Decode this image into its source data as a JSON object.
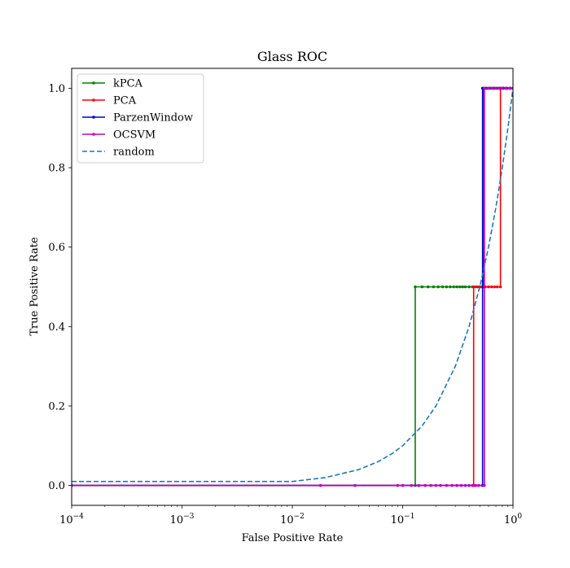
{
  "chart_data": {
    "type": "line",
    "title": "Glass ROC",
    "xlabel": "False Positive Rate",
    "ylabel": "True Positive Rate",
    "xscale": "log",
    "xlim": [
      0.0001,
      1
    ],
    "ylim": [
      -0.05,
      1.05
    ],
    "grid": false,
    "legend_position": "top-left",
    "x_ticks": [
      0.0001,
      0.001,
      0.01,
      0.1,
      1
    ],
    "x_tick_labels": [
      {
        "base": "10",
        "exp": "−4"
      },
      {
        "base": "10",
        "exp": "−3"
      },
      {
        "base": "10",
        "exp": "−2"
      },
      {
        "base": "10",
        "exp": "−1"
      },
      {
        "base": "10",
        "exp": "0"
      }
    ],
    "y_ticks": [
      0.0,
      0.2,
      0.4,
      0.6,
      0.8,
      1.0
    ],
    "y_tick_labels": [
      "0.0",
      "0.2",
      "0.4",
      "0.6",
      "0.8",
      "1.0"
    ],
    "series": [
      {
        "name": "kPCA",
        "color": "#008000",
        "style": "solid",
        "marker": true,
        "x": [
          0.0001,
          0.13,
          0.13,
          0.15,
          0.17,
          0.19,
          0.21,
          0.23,
          0.25,
          0.27,
          0.29,
          0.31,
          0.33,
          0.35,
          0.37,
          0.4,
          0.43,
          0.46,
          0.5,
          0.54,
          0.54,
          0.58,
          0.63,
          0.68,
          0.74,
          0.8,
          0.87,
          0.94,
          1.0
        ],
        "y": [
          0.0,
          0.0,
          0.5,
          0.5,
          0.5,
          0.5,
          0.5,
          0.5,
          0.5,
          0.5,
          0.5,
          0.5,
          0.5,
          0.5,
          0.5,
          0.5,
          0.5,
          0.5,
          0.5,
          0.5,
          1.0,
          1.0,
          1.0,
          1.0,
          1.0,
          1.0,
          1.0,
          1.0,
          1.0
        ]
      },
      {
        "name": "PCA",
        "color": "#ff0000",
        "style": "solid",
        "marker": true,
        "x": [
          0.0001,
          0.44,
          0.44,
          0.48,
          0.52,
          0.56,
          0.6,
          0.64,
          0.68,
          0.72,
          0.77,
          0.77,
          0.82,
          0.88,
          0.94,
          1.0
        ],
        "y": [
          0.0,
          0.0,
          0.5,
          0.5,
          0.5,
          0.5,
          0.5,
          0.5,
          0.5,
          0.5,
          0.5,
          1.0,
          1.0,
          1.0,
          1.0,
          1.0
        ]
      },
      {
        "name": "ParzenWindow",
        "color": "#0000cc",
        "style": "solid",
        "marker": true,
        "x": [
          0.0001,
          0.53,
          0.53,
          0.57,
          0.61,
          0.66,
          0.71,
          0.76,
          0.82,
          0.88,
          0.94,
          1.0
        ],
        "y": [
          0.0,
          0.0,
          1.0,
          1.0,
          1.0,
          1.0,
          1.0,
          1.0,
          1.0,
          1.0,
          1.0,
          1.0
        ]
      },
      {
        "name": "OCSVM",
        "color": "#bf00bf",
        "style": "solid",
        "marker": true,
        "x": [
          0.0001,
          0.018,
          0.037,
          0.09,
          0.1,
          0.12,
          0.14,
          0.16,
          0.18,
          0.2,
          0.22,
          0.25,
          0.28,
          0.31,
          0.34,
          0.37,
          0.4,
          0.43,
          0.46,
          0.49,
          0.55,
          0.55,
          0.6,
          0.65,
          0.7,
          0.75,
          0.8,
          0.86,
          0.93,
          1.0
        ],
        "y": [
          0.0,
          0.0,
          0.0,
          0.0,
          0.0,
          0.0,
          0.0,
          0.0,
          0.0,
          0.0,
          0.0,
          0.0,
          0.0,
          0.0,
          0.0,
          0.0,
          0.0,
          0.0,
          0.0,
          0.0,
          0.0,
          1.0,
          1.0,
          1.0,
          1.0,
          1.0,
          1.0,
          1.0,
          1.0,
          1.0
        ]
      },
      {
        "name": "random",
        "color": "#1f77b4",
        "style": "dashed",
        "marker": false,
        "x": [
          0.0001,
          0.01,
          0.02,
          0.04,
          0.06,
          0.08,
          0.1,
          0.15,
          0.2,
          0.3,
          0.4,
          0.5,
          0.6,
          0.7,
          0.8,
          0.9,
          1.0
        ],
        "y": [
          0.01,
          0.01,
          0.02,
          0.04,
          0.06,
          0.08,
          0.1,
          0.15,
          0.2,
          0.3,
          0.4,
          0.5,
          0.6,
          0.7,
          0.8,
          0.9,
          1.0
        ]
      }
    ]
  }
}
